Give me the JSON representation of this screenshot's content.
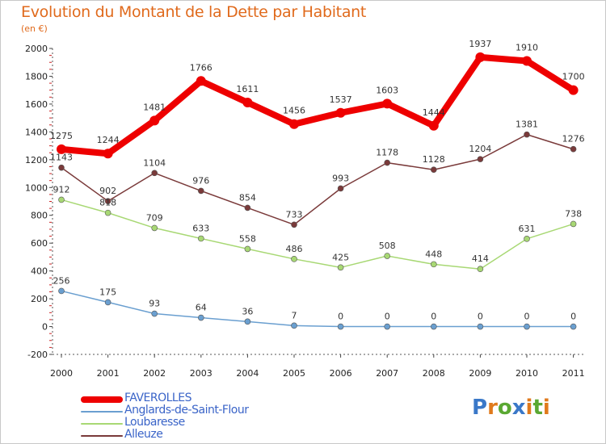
{
  "title": "Evolution du Montant de la Dette par Habitant",
  "subtitle": "(en €)",
  "chart_data": {
    "type": "line",
    "title": "Evolution du Montant de la Dette par Habitant",
    "ylabel": "(en €)",
    "xlabel": "",
    "x": [
      "2000",
      "2001",
      "2002",
      "2003",
      "2004",
      "2005",
      "2006",
      "2007",
      "2008",
      "2009",
      "2010",
      "2011"
    ],
    "ylim": [
      -200,
      2000
    ],
    "yticks": [
      -200,
      0,
      200,
      400,
      600,
      800,
      1000,
      1200,
      1400,
      1600,
      1800,
      2000
    ],
    "grid": false,
    "legend_position": "bottom-left",
    "series": [
      {
        "name": "FAVEROLLES",
        "color": "#ee0000",
        "width": 8,
        "marker": 6,
        "values": [
          1275,
          1244,
          1481,
          1766,
          1611,
          1456,
          1537,
          1603,
          1444,
          1937,
          1910,
          1700
        ]
      },
      {
        "name": "Anglards-de-Saint-Flour",
        "color": "#6a9fd0",
        "width": 1.5,
        "marker": 3.5,
        "values": [
          256,
          175,
          93,
          64,
          36,
          7,
          0,
          0,
          0,
          0,
          0,
          0
        ]
      },
      {
        "name": "Loubaresse",
        "color": "#a8d874",
        "width": 1.5,
        "marker": 3.5,
        "values": [
          912,
          818,
          709,
          633,
          558,
          486,
          425,
          508,
          448,
          414,
          631,
          738
        ]
      },
      {
        "name": "Alleuze",
        "color": "#7a3a3a",
        "width": 1.5,
        "marker": 3.5,
        "values": [
          1143,
          902,
          1104,
          976,
          854,
          733,
          993,
          1178,
          1128,
          1204,
          1381,
          1276
        ]
      }
    ]
  },
  "legend": [
    {
      "label": "FAVEROLLES",
      "color": "#ee0000",
      "width": 8
    },
    {
      "label": "Anglards-de-Saint-Flour",
      "color": "#6a9fd0",
      "width": 2
    },
    {
      "label": "Loubaresse",
      "color": "#a8d874",
      "width": 2
    },
    {
      "label": "Alleuze",
      "color": "#7a3a3a",
      "width": 2
    }
  ],
  "logo": {
    "letters": [
      "P",
      "r",
      "o",
      "x",
      "i",
      "t",
      "i"
    ],
    "colors": [
      "#3a78c8",
      "#e07a1c",
      "#5aa832",
      "#3a78c8",
      "#e07a1c",
      "#5aa832",
      "#e07a1c"
    ]
  }
}
